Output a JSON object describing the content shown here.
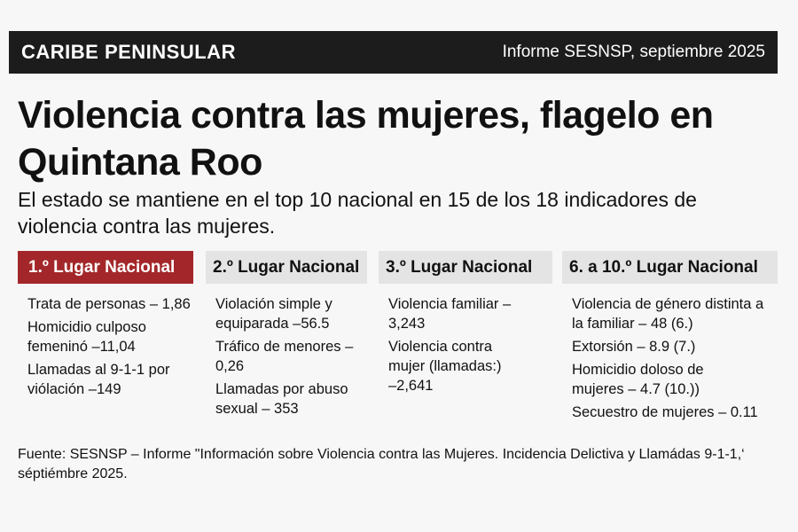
{
  "header": {
    "section": "CARIBE PENINSULAR",
    "report": "Informe SESNSP, septiembre 2025"
  },
  "title": "Violencia contra las mujeres, flagelo en Quintana Roo",
  "subtitle": "El estado se mantiene en el top 10 nacional en 15 de los 18 indicadores de violencia contra las mujeres.",
  "columns": [
    {
      "heading": "1.º Lugar Nacional",
      "items": [
        "Trata de personas – 1,86",
        "Homicidio culposo femeninó –11,04",
        "Llamadas al 9-1-1 por viólación –149"
      ]
    },
    {
      "heading": "2.º Lugar Nacional",
      "items": [
        "Violación simple y equiparada –56.5",
        "Tráfico de menores –0,26",
        "Llamadas por abuso sexual – 353"
      ]
    },
    {
      "heading": "3.º Lugar Nacional",
      "items": [
        "Violencia familiar –3,243",
        "Violencia contra mujer (llamadas:) –2,641"
      ]
    },
    {
      "heading": "6. a 10.º Lugar Nacional",
      "items": [
        "Violencia de género distinta a la familiar – 48 (6.)",
        "Extorsión – 8.9 (7.)",
        "Homicidio doloso de mujeres – 4.7 (10.))",
        "Secuestro de mujeres – 0.11"
      ]
    }
  ],
  "source": "Fuente: SESNSP – Informe \"Información sobre Violencia contra las Mujeres. Incidencia Delictiva y Llamádas 9-1-1,‘ séptiémbre 2025.",
  "colors": {
    "accent": "#a3272a",
    "bar": "#1c1c1c"
  }
}
